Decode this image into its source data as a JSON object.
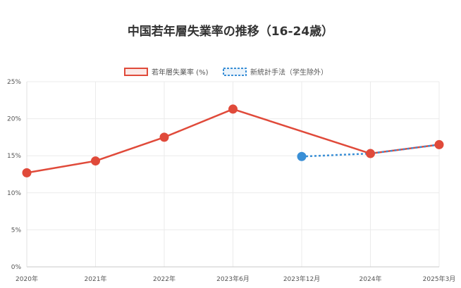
{
  "chart_data": {
    "type": "line",
    "title": "中国若年層失業率の推移（16-24歳）",
    "categories": [
      "2020年",
      "2021年",
      "2022年",
      "2023年6月",
      "2023年12月",
      "2024年",
      "2025年3月"
    ],
    "series": [
      {
        "name": "若年層失業率 (%)",
        "values": [
          12.7,
          14.3,
          17.5,
          21.3,
          null,
          15.3,
          16.5
        ],
        "color": "#e04a3a",
        "style": "solid"
      },
      {
        "name": "新統計手法（学生除外）",
        "values": [
          null,
          null,
          null,
          null,
          14.9,
          15.3,
          16.5
        ],
        "color": "#3a8fd6",
        "style": "dotted"
      }
    ],
    "y_ticks": [
      "0%",
      "5%",
      "10%",
      "15%",
      "20%",
      "25%"
    ],
    "ylim": [
      0,
      25
    ],
    "grid": true,
    "legend_position": "top"
  }
}
